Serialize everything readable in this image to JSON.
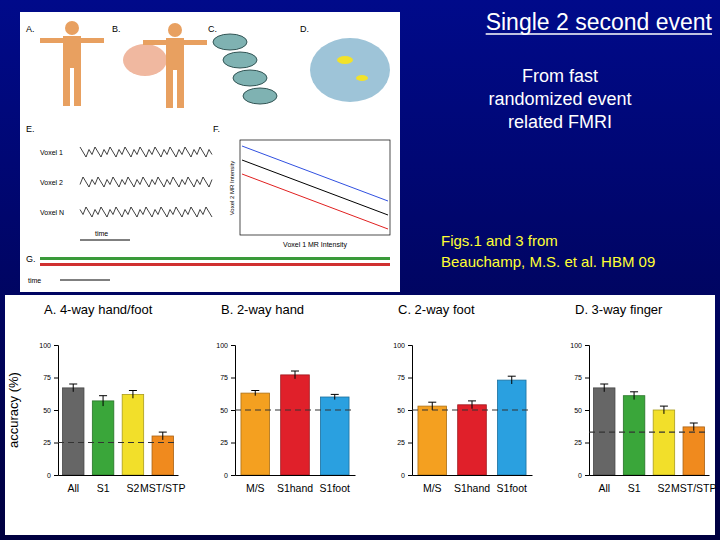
{
  "title": "Single 2 second event",
  "subtitle": [
    "From fast",
    "randomized event",
    "related FMRI"
  ],
  "citation": [
    "Figs.1 and 3 from",
    "Beauchamp, M.S. et al. HBM 09"
  ],
  "figure": {
    "panels": [
      "A.",
      "B.",
      "C.",
      "D.",
      "E.",
      "F.",
      "G."
    ],
    "voxels": [
      "Voxel 1",
      "Voxel 2",
      "Voxel N"
    ],
    "time": "time",
    "scatter_xlabel": "Voxel 1 MR Intensity",
    "scatter_ylabel": "Voxel 2 MR Intensity"
  },
  "chart_data": [
    {
      "type": "bar",
      "title": "A. 4-way hand/foot",
      "ylabel": "accuracy (%)",
      "categories": [
        "All",
        "S1",
        "S2",
        "MST/STP"
      ],
      "values": [
        67,
        57,
        62,
        30
      ],
      "errors": [
        3,
        4,
        3,
        3
      ],
      "colors": [
        "#666666",
        "#3aa63a",
        "#f2df2a",
        "#f08a1e"
      ],
      "chance": 25,
      "ylim": [
        0,
        100
      ],
      "yticks": [
        0,
        25,
        50,
        75,
        100
      ]
    },
    {
      "type": "bar",
      "title": "B. 2-way hand",
      "categories": [
        "M/S",
        "S1hand",
        "S1foot"
      ],
      "values": [
        63,
        77,
        60
      ],
      "errors": [
        2,
        3,
        2
      ],
      "colors": [
        "#f4a020",
        "#e0202a",
        "#2aa0e0"
      ],
      "chance": 50,
      "ylim": [
        0,
        100
      ],
      "yticks": [
        0,
        25,
        50,
        75,
        100
      ]
    },
    {
      "type": "bar",
      "title": "C. 2-way foot",
      "categories": [
        "M/S",
        "S1hand",
        "S1foot"
      ],
      "values": [
        53,
        54,
        73
      ],
      "errors": [
        3,
        3,
        3
      ],
      "colors": [
        "#f4a020",
        "#e0202a",
        "#2aa0e0"
      ],
      "chance": 50,
      "ylim": [
        0,
        100
      ],
      "yticks": [
        0,
        25,
        50,
        75,
        100
      ]
    },
    {
      "type": "bar",
      "title": "D. 3-way finger",
      "categories": [
        "All",
        "S1",
        "S2",
        "MST/STP"
      ],
      "values": [
        67,
        61,
        50,
        37
      ],
      "errors": [
        3,
        3,
        3,
        3
      ],
      "colors": [
        "#666666",
        "#3aa63a",
        "#f2df2a",
        "#f08a1e"
      ],
      "chance": 33,
      "ylim": [
        0,
        100
      ],
      "yticks": [
        0,
        25,
        50,
        75,
        100
      ]
    }
  ]
}
